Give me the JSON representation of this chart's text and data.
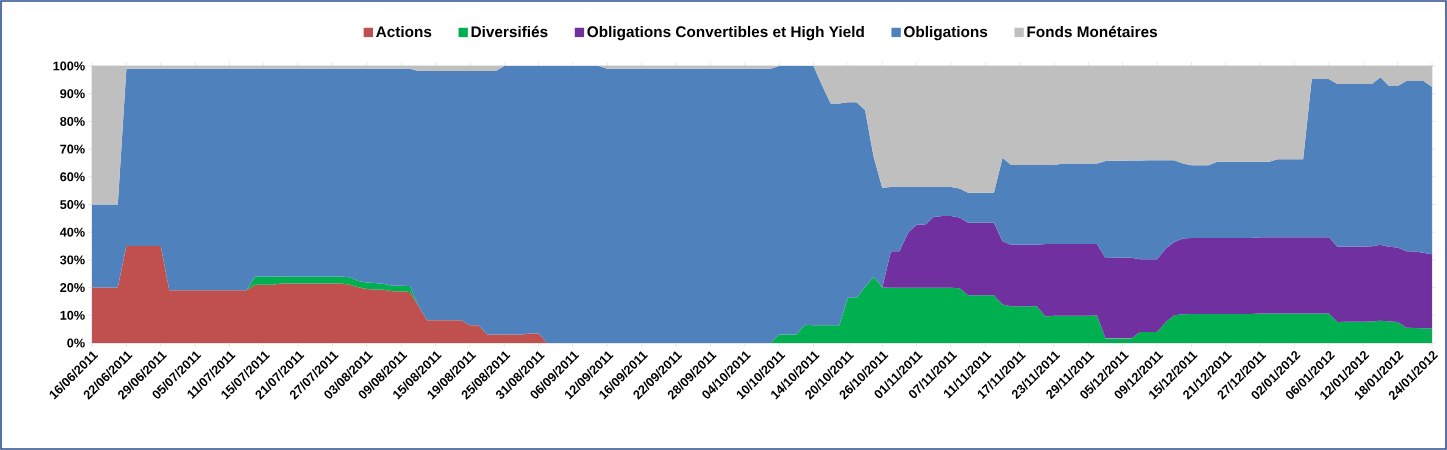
{
  "chart_data": {
    "type": "area",
    "stacked": true,
    "legend": "top",
    "ylim": [
      0,
      100
    ],
    "yticks": [
      {
        "value": 0,
        "label": "0%"
      },
      {
        "value": 10,
        "label": "10%"
      },
      {
        "value": 20,
        "label": "20%"
      },
      {
        "value": 30,
        "label": "30%"
      },
      {
        "value": 40,
        "label": "40%"
      },
      {
        "value": 50,
        "label": "50%"
      },
      {
        "value": 60,
        "label": "60%"
      },
      {
        "value": 70,
        "label": "70%"
      },
      {
        "value": 80,
        "label": "80%"
      },
      {
        "value": 90,
        "label": "90%"
      },
      {
        "value": 100,
        "label": "100%"
      }
    ],
    "categories": [
      "16/06/2011",
      null,
      null,
      null,
      "22/06/2011",
      null,
      null,
      null,
      "29/06/2011",
      null,
      null,
      null,
      "05/07/2011",
      null,
      null,
      null,
      "11/07/2011",
      null,
      null,
      null,
      "15/07/2011",
      null,
      null,
      null,
      "21/07/2011",
      null,
      null,
      null,
      "27/07/2011",
      null,
      null,
      null,
      "03/08/2011",
      null,
      null,
      null,
      "09/08/2011",
      null,
      null,
      null,
      "15/08/2011",
      null,
      null,
      null,
      "19/08/2011",
      null,
      null,
      null,
      "25/08/2011",
      null,
      null,
      null,
      "31/08/2011",
      null,
      null,
      null,
      "06/09/2011",
      null,
      null,
      null,
      "12/09/2011",
      null,
      null,
      null,
      "16/09/2011",
      null,
      null,
      null,
      "22/09/2011",
      null,
      null,
      null,
      "28/09/2011",
      null,
      null,
      null,
      "04/10/2011",
      null,
      null,
      null,
      "10/10/2011",
      null,
      null,
      null,
      "14/10/2011",
      null,
      null,
      null,
      "20/10/2011",
      null,
      null,
      null,
      "26/10/2011",
      null,
      null,
      null,
      "01/11/2011",
      null,
      null,
      null,
      "07/11/2011",
      null,
      null,
      null,
      "11/11/2011",
      null,
      null,
      null,
      "17/11/2011",
      null,
      null,
      null,
      "23/11/2011",
      null,
      null,
      null,
      "29/11/2011",
      null,
      null,
      null,
      "05/12/2011",
      null,
      null,
      null,
      "09/12/2011",
      null,
      null,
      null,
      "15/12/2011",
      null,
      null,
      null,
      "21/12/2011",
      null,
      null,
      null,
      "27/12/2011",
      null,
      null,
      null,
      "02/01/2012",
      null,
      null,
      null,
      "06/01/2012",
      null,
      null,
      null,
      "12/01/2012",
      null,
      null,
      null,
      "18/01/2012",
      null,
      null,
      null,
      "24/01/2012"
    ],
    "series": [
      {
        "name": "Actions",
        "color": "#c0504d",
        "values": [
          20,
          20,
          20,
          20,
          35,
          35,
          35,
          35,
          35,
          19,
          19,
          19,
          19,
          19,
          19,
          19,
          19,
          19,
          19,
          21,
          21,
          21,
          21.5,
          21.5,
          21.5,
          21.5,
          21.5,
          21.5,
          21.5,
          21.5,
          21,
          20.1,
          19.5,
          19.3,
          19.2,
          18.7,
          18.7,
          18.4,
          13.4,
          8.2,
          8.2,
          8.2,
          8.2,
          8.2,
          6.4,
          6.4,
          3.1,
          3.1,
          3.1,
          3.1,
          3.1,
          3.4,
          3.4,
          0,
          null,
          null,
          null,
          null,
          null,
          null,
          null,
          null,
          null,
          null,
          null,
          null,
          null,
          null,
          null,
          null,
          null,
          null,
          null,
          null,
          null,
          null,
          null,
          null,
          null,
          null,
          null,
          null,
          null,
          null,
          null,
          null,
          null,
          null,
          null,
          null,
          null,
          null,
          null,
          null,
          null,
          null,
          null,
          null,
          null,
          null,
          null,
          null,
          null,
          null,
          null,
          null,
          null,
          null,
          null,
          null,
          null,
          null,
          null,
          null,
          null,
          null,
          null,
          null,
          null,
          null,
          null,
          null,
          null,
          null,
          null,
          null,
          null,
          null,
          null,
          null,
          null,
          null,
          null,
          null,
          null,
          null,
          null,
          null,
          null,
          null,
          null,
          null,
          null,
          null,
          null,
          null,
          null,
          null,
          null,
          null,
          null,
          null,
          null,
          null,
          null,
          null,
          null
        ]
      },
      {
        "name": "Diversifiés",
        "color": "#00b050",
        "values": [
          null,
          null,
          null,
          null,
          null,
          null,
          null,
          null,
          null,
          null,
          null,
          null,
          null,
          null,
          null,
          null,
          null,
          null,
          0,
          3,
          3,
          3,
          2.5,
          2.5,
          2.5,
          2.5,
          2.5,
          2.5,
          2.5,
          2.5,
          2.7,
          2.3,
          2.3,
          2.4,
          2.1,
          2,
          2,
          2.2,
          0,
          null,
          null,
          null,
          null,
          null,
          null,
          null,
          null,
          null,
          null,
          null,
          null,
          null,
          null,
          null,
          null,
          null,
          null,
          null,
          null,
          null,
          null,
          null,
          null,
          null,
          null,
          null,
          null,
          null,
          null,
          null,
          null,
          null,
          null,
          null,
          null,
          null,
          null,
          null,
          null,
          0,
          3.1,
          3.1,
          3.1,
          6.6,
          6.4,
          6.4,
          6.4,
          6.4,
          16.3,
          16.3,
          20.2,
          23.9,
          20,
          19.9,
          19.9,
          19.9,
          19.9,
          19.9,
          19.9,
          19.9,
          19.9,
          19.8,
          17.2,
          17.2,
          17.2,
          17.2,
          13.9,
          13.3,
          13.3,
          13.3,
          13.3,
          9.6,
          9.8,
          9.8,
          9.8,
          9.8,
          9.8,
          9.9,
          1.6,
          1.6,
          1.6,
          1.6,
          4,
          4,
          4,
          7.5,
          10,
          10.4,
          10.5,
          10.5,
          10.5,
          10.5,
          10.5,
          10.5,
          10.5,
          10.5,
          10.6,
          10.6,
          10.6,
          10.6,
          10.6,
          10.6,
          10.6,
          10.6,
          10.6,
          7.6,
          7.7,
          7.7,
          7.7,
          7.8,
          8,
          7.8,
          7.6,
          5.5,
          5.4,
          5.3,
          5.2
        ]
      },
      {
        "name": "Obligations Convertibles et High Yield",
        "color": "#7030a0",
        "values": [
          null,
          null,
          null,
          null,
          null,
          null,
          null,
          null,
          null,
          null,
          null,
          null,
          null,
          null,
          null,
          null,
          null,
          null,
          null,
          null,
          null,
          null,
          null,
          null,
          null,
          null,
          null,
          null,
          null,
          null,
          null,
          null,
          null,
          null,
          null,
          null,
          null,
          null,
          null,
          null,
          null,
          null,
          null,
          null,
          null,
          null,
          null,
          null,
          null,
          null,
          null,
          null,
          null,
          null,
          null,
          null,
          null,
          null,
          null,
          null,
          null,
          null,
          null,
          null,
          null,
          null,
          null,
          null,
          null,
          null,
          null,
          null,
          null,
          null,
          null,
          null,
          null,
          null,
          null,
          null,
          null,
          null,
          null,
          null,
          null,
          null,
          null,
          null,
          null,
          null,
          null,
          null,
          0,
          13.2,
          13.2,
          19.9,
          22.9,
          22.9,
          25.6,
          25.9,
          25.9,
          25.5,
          26.2,
          26.2,
          26.2,
          26.2,
          22.8,
          22.2,
          22.2,
          22.2,
          22.2,
          26.1,
          25.9,
          25.9,
          25.9,
          25.9,
          25.9,
          25.8,
          29.1,
          29.2,
          29.2,
          29.2,
          26.2,
          26.2,
          26.2,
          26.6,
          26.5,
          27.3,
          27.4,
          27.4,
          27.4,
          27.4,
          27.4,
          27.4,
          27.4,
          27.4,
          27.6,
          27.6,
          27.6,
          27.6,
          27.6,
          27.6,
          27.6,
          27.6,
          27.6,
          27.1,
          27.1,
          27.1,
          27.1,
          27.1,
          27.5,
          26.9,
          26.9,
          27.6,
          27.6,
          27.3,
          26.8
        ]
      },
      {
        "name": "Obligations",
        "color": "#4f81bd",
        "values": [
          30,
          30,
          30,
          30,
          64,
          64,
          64,
          64,
          64,
          80,
          80,
          80,
          80,
          80,
          80,
          80,
          80,
          80,
          80,
          75,
          75,
          75,
          75,
          75,
          75,
          75,
          75,
          75,
          75,
          75,
          75.3,
          76.6,
          77.2,
          77.3,
          77.7,
          78.3,
          78.3,
          78.4,
          84.8,
          90,
          90,
          90,
          90,
          90,
          91.8,
          91.8,
          95.1,
          95.1,
          96.9,
          96.9,
          96.9,
          96.6,
          96.6,
          100,
          100,
          100,
          100,
          100,
          100,
          100,
          99,
          99,
          99,
          99,
          99,
          99,
          99,
          99,
          99,
          99,
          99,
          99,
          99,
          99,
          99,
          99,
          99,
          99,
          99,
          99,
          96.9,
          96.9,
          96.9,
          93.4,
          93.6,
          86.6,
          80.1,
          80.1,
          70.6,
          70.6,
          63.9,
          43.3,
          36,
          23.2,
          23.2,
          16.5,
          13.5,
          13.5,
          10.8,
          10.5,
          10.5,
          10.5,
          10.8,
          10.8,
          10.8,
          10.8,
          30.2,
          28.8,
          28.8,
          28.8,
          28.8,
          28.6,
          28.6,
          29.1,
          29.1,
          29.1,
          29.1,
          29.1,
          35,
          35,
          35,
          35.1,
          35.7,
          35.8,
          35.8,
          31.9,
          29.5,
          27.1,
          26.3,
          26.3,
          26.3,
          27.5,
          27.5,
          27.5,
          27.5,
          27.5,
          27.2,
          27.2,
          28.1,
          28.1,
          28.1,
          28.1,
          57.1,
          57.1,
          57.1,
          58.8,
          58.7,
          58.7,
          58.7,
          58.6,
          60.4,
          58.1,
          58.3,
          61.5,
          61.6,
          62,
          60.5
        ]
      },
      {
        "name": "Fonds Monétaires",
        "color": "#bfbfbf",
        "values": [
          50,
          50,
          50,
          50,
          1,
          1,
          1,
          1,
          1,
          1,
          1,
          1,
          1,
          1,
          1,
          1,
          1,
          1,
          1,
          1,
          1,
          1,
          1,
          1,
          1,
          1,
          1,
          1,
          1,
          1,
          1,
          1,
          1,
          1,
          1,
          1,
          1,
          1,
          1.8,
          1.8,
          1.8,
          1.8,
          1.8,
          1.8,
          1.8,
          1.8,
          1.8,
          1.8,
          0,
          0,
          0,
          0,
          0,
          0,
          0,
          0,
          0,
          0,
          0,
          0,
          1,
          1,
          1,
          1,
          1,
          1,
          1,
          1,
          1,
          1,
          1,
          1,
          1,
          1,
          1,
          1,
          1,
          1,
          1,
          1,
          0,
          0,
          0,
          0,
          0,
          7,
          13.5,
          13.5,
          13.1,
          13.1,
          15.9,
          32.8,
          44,
          43.7,
          43.7,
          43.7,
          43.7,
          43.7,
          43.7,
          43.7,
          43.7,
          44.2,
          45.8,
          45.8,
          45.8,
          45.8,
          33.1,
          35.7,
          35.7,
          35.7,
          35.7,
          35.7,
          35.7,
          35.2,
          35.2,
          35.2,
          35.2,
          35.2,
          34.3,
          34.2,
          34.2,
          34.1,
          34.1,
          34,
          34,
          34,
          34,
          35.2,
          35.8,
          35.8,
          35.8,
          34.6,
          34.6,
          34.6,
          34.6,
          34.6,
          34.6,
          34.6,
          33.7,
          33.7,
          33.7,
          33.7,
          4.7,
          4.7,
          4.7,
          6.5,
          6.5,
          6.5,
          6.5,
          6.5,
          4.1,
          7.2,
          7.2,
          5.4,
          5.4,
          5.4,
          7.5
        ]
      }
    ]
  }
}
